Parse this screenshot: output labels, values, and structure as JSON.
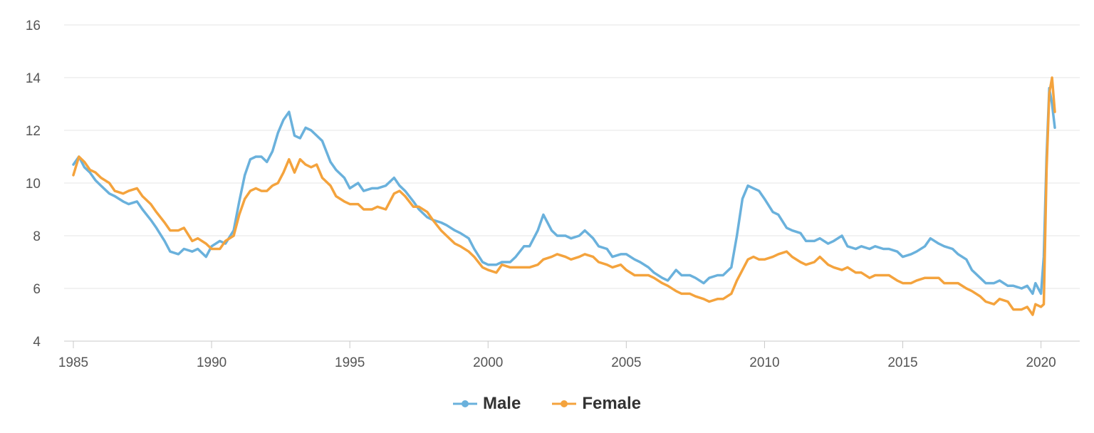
{
  "chart_data": {
    "type": "line",
    "title": "",
    "xlabel": "",
    "ylabel": "",
    "xlim": [
      1985,
      2020.5
    ],
    "ylim": [
      4,
      16
    ],
    "x_ticks": [
      "1985",
      "1990",
      "1995",
      "2000",
      "2005",
      "2010",
      "2015",
      "2020"
    ],
    "y_ticks": [
      "4",
      "6",
      "8",
      "10",
      "12",
      "14",
      "16"
    ],
    "grid": "horizontal",
    "legend_position": "bottom-center",
    "series": [
      {
        "name": "Male",
        "color": "#6ab1dc",
        "points": [
          [
            1985.0,
            10.7
          ],
          [
            1985.2,
            11.0
          ],
          [
            1985.4,
            10.6
          ],
          [
            1985.6,
            10.4
          ],
          [
            1985.8,
            10.1
          ],
          [
            1986.0,
            9.9
          ],
          [
            1986.3,
            9.6
          ],
          [
            1986.5,
            9.5
          ],
          [
            1986.8,
            9.3
          ],
          [
            1987.0,
            9.2
          ],
          [
            1987.3,
            9.3
          ],
          [
            1987.5,
            9.0
          ],
          [
            1987.8,
            8.6
          ],
          [
            1988.0,
            8.3
          ],
          [
            1988.3,
            7.8
          ],
          [
            1988.5,
            7.4
          ],
          [
            1988.8,
            7.3
          ],
          [
            1989.0,
            7.5
          ],
          [
            1989.3,
            7.4
          ],
          [
            1989.5,
            7.5
          ],
          [
            1989.8,
            7.2
          ],
          [
            1990.0,
            7.6
          ],
          [
            1990.3,
            7.8
          ],
          [
            1990.5,
            7.7
          ],
          [
            1990.8,
            8.2
          ],
          [
            1991.0,
            9.3
          ],
          [
            1991.2,
            10.3
          ],
          [
            1991.4,
            10.9
          ],
          [
            1991.6,
            11.0
          ],
          [
            1991.8,
            11.0
          ],
          [
            1992.0,
            10.8
          ],
          [
            1992.2,
            11.2
          ],
          [
            1992.4,
            11.9
          ],
          [
            1992.6,
            12.4
          ],
          [
            1992.8,
            12.7
          ],
          [
            1993.0,
            11.8
          ],
          [
            1993.2,
            11.7
          ],
          [
            1993.4,
            12.1
          ],
          [
            1993.6,
            12.0
          ],
          [
            1993.8,
            11.8
          ],
          [
            1994.0,
            11.6
          ],
          [
            1994.3,
            10.8
          ],
          [
            1994.5,
            10.5
          ],
          [
            1994.8,
            10.2
          ],
          [
            1995.0,
            9.8
          ],
          [
            1995.3,
            10.0
          ],
          [
            1995.5,
            9.7
          ],
          [
            1995.8,
            9.8
          ],
          [
            1996.0,
            9.8
          ],
          [
            1996.3,
            9.9
          ],
          [
            1996.6,
            10.2
          ],
          [
            1996.8,
            9.9
          ],
          [
            1997.0,
            9.7
          ],
          [
            1997.3,
            9.3
          ],
          [
            1997.5,
            9.0
          ],
          [
            1997.8,
            8.7
          ],
          [
            1998.0,
            8.6
          ],
          [
            1998.3,
            8.5
          ],
          [
            1998.5,
            8.4
          ],
          [
            1998.8,
            8.2
          ],
          [
            1999.0,
            8.1
          ],
          [
            1999.3,
            7.9
          ],
          [
            1999.5,
            7.5
          ],
          [
            1999.8,
            7.0
          ],
          [
            2000.0,
            6.9
          ],
          [
            2000.3,
            6.9
          ],
          [
            2000.5,
            7.0
          ],
          [
            2000.8,
            7.0
          ],
          [
            2001.0,
            7.2
          ],
          [
            2001.3,
            7.6
          ],
          [
            2001.5,
            7.6
          ],
          [
            2001.8,
            8.2
          ],
          [
            2002.0,
            8.8
          ],
          [
            2002.3,
            8.2
          ],
          [
            2002.5,
            8.0
          ],
          [
            2002.8,
            8.0
          ],
          [
            2003.0,
            7.9
          ],
          [
            2003.3,
            8.0
          ],
          [
            2003.5,
            8.2
          ],
          [
            2003.8,
            7.9
          ],
          [
            2004.0,
            7.6
          ],
          [
            2004.3,
            7.5
          ],
          [
            2004.5,
            7.2
          ],
          [
            2004.8,
            7.3
          ],
          [
            2005.0,
            7.3
          ],
          [
            2005.3,
            7.1
          ],
          [
            2005.5,
            7.0
          ],
          [
            2005.8,
            6.8
          ],
          [
            2006.0,
            6.6
          ],
          [
            2006.3,
            6.4
          ],
          [
            2006.5,
            6.3
          ],
          [
            2006.8,
            6.7
          ],
          [
            2007.0,
            6.5
          ],
          [
            2007.3,
            6.5
          ],
          [
            2007.5,
            6.4
          ],
          [
            2007.8,
            6.2
          ],
          [
            2008.0,
            6.4
          ],
          [
            2008.3,
            6.5
          ],
          [
            2008.5,
            6.5
          ],
          [
            2008.8,
            6.8
          ],
          [
            2009.0,
            8.0
          ],
          [
            2009.2,
            9.4
          ],
          [
            2009.4,
            9.9
          ],
          [
            2009.6,
            9.8
          ],
          [
            2009.8,
            9.7
          ],
          [
            2010.0,
            9.4
          ],
          [
            2010.3,
            8.9
          ],
          [
            2010.5,
            8.8
          ],
          [
            2010.8,
            8.3
          ],
          [
            2011.0,
            8.2
          ],
          [
            2011.3,
            8.1
          ],
          [
            2011.5,
            7.8
          ],
          [
            2011.8,
            7.8
          ],
          [
            2012.0,
            7.9
          ],
          [
            2012.3,
            7.7
          ],
          [
            2012.5,
            7.8
          ],
          [
            2012.8,
            8.0
          ],
          [
            2013.0,
            7.6
          ],
          [
            2013.3,
            7.5
          ],
          [
            2013.5,
            7.6
          ],
          [
            2013.8,
            7.5
          ],
          [
            2014.0,
            7.6
          ],
          [
            2014.3,
            7.5
          ],
          [
            2014.5,
            7.5
          ],
          [
            2014.8,
            7.4
          ],
          [
            2015.0,
            7.2
          ],
          [
            2015.3,
            7.3
          ],
          [
            2015.5,
            7.4
          ],
          [
            2015.8,
            7.6
          ],
          [
            2016.0,
            7.9
          ],
          [
            2016.3,
            7.7
          ],
          [
            2016.5,
            7.6
          ],
          [
            2016.8,
            7.5
          ],
          [
            2017.0,
            7.3
          ],
          [
            2017.3,
            7.1
          ],
          [
            2017.5,
            6.7
          ],
          [
            2017.8,
            6.4
          ],
          [
            2018.0,
            6.2
          ],
          [
            2018.3,
            6.2
          ],
          [
            2018.5,
            6.3
          ],
          [
            2018.8,
            6.1
          ],
          [
            2019.0,
            6.1
          ],
          [
            2019.3,
            6.0
          ],
          [
            2019.5,
            6.1
          ],
          [
            2019.7,
            5.8
          ],
          [
            2019.8,
            6.2
          ],
          [
            2020.0,
            5.8
          ],
          [
            2020.1,
            7.2
          ],
          [
            2020.2,
            11.0
          ],
          [
            2020.3,
            13.6
          ],
          [
            2020.4,
            13.0
          ],
          [
            2020.5,
            12.1
          ]
        ]
      },
      {
        "name": "Female",
        "color": "#f4a33d",
        "points": [
          [
            1985.0,
            10.3
          ],
          [
            1985.2,
            11.0
          ],
          [
            1985.4,
            10.8
          ],
          [
            1985.6,
            10.5
          ],
          [
            1985.8,
            10.4
          ],
          [
            1986.0,
            10.2
          ],
          [
            1986.3,
            10.0
          ],
          [
            1986.5,
            9.7
          ],
          [
            1986.8,
            9.6
          ],
          [
            1987.0,
            9.7
          ],
          [
            1987.3,
            9.8
          ],
          [
            1987.5,
            9.5
          ],
          [
            1987.8,
            9.2
          ],
          [
            1988.0,
            8.9
          ],
          [
            1988.3,
            8.5
          ],
          [
            1988.5,
            8.2
          ],
          [
            1988.8,
            8.2
          ],
          [
            1989.0,
            8.3
          ],
          [
            1989.3,
            7.8
          ],
          [
            1989.5,
            7.9
          ],
          [
            1989.8,
            7.7
          ],
          [
            1990.0,
            7.5
          ],
          [
            1990.3,
            7.5
          ],
          [
            1990.5,
            7.8
          ],
          [
            1990.8,
            8.0
          ],
          [
            1991.0,
            8.8
          ],
          [
            1991.2,
            9.4
          ],
          [
            1991.4,
            9.7
          ],
          [
            1991.6,
            9.8
          ],
          [
            1991.8,
            9.7
          ],
          [
            1992.0,
            9.7
          ],
          [
            1992.2,
            9.9
          ],
          [
            1992.4,
            10.0
          ],
          [
            1992.6,
            10.4
          ],
          [
            1992.8,
            10.9
          ],
          [
            1993.0,
            10.4
          ],
          [
            1993.2,
            10.9
          ],
          [
            1993.4,
            10.7
          ],
          [
            1993.6,
            10.6
          ],
          [
            1993.8,
            10.7
          ],
          [
            1994.0,
            10.2
          ],
          [
            1994.3,
            9.9
          ],
          [
            1994.5,
            9.5
          ],
          [
            1994.8,
            9.3
          ],
          [
            1995.0,
            9.2
          ],
          [
            1995.3,
            9.2
          ],
          [
            1995.5,
            9.0
          ],
          [
            1995.8,
            9.0
          ],
          [
            1996.0,
            9.1
          ],
          [
            1996.3,
            9.0
          ],
          [
            1996.6,
            9.6
          ],
          [
            1996.8,
            9.7
          ],
          [
            1997.0,
            9.5
          ],
          [
            1997.3,
            9.1
          ],
          [
            1997.5,
            9.1
          ],
          [
            1997.8,
            8.9
          ],
          [
            1998.0,
            8.6
          ],
          [
            1998.3,
            8.2
          ],
          [
            1998.5,
            8.0
          ],
          [
            1998.8,
            7.7
          ],
          [
            1999.0,
            7.6
          ],
          [
            1999.3,
            7.4
          ],
          [
            1999.5,
            7.2
          ],
          [
            1999.8,
            6.8
          ],
          [
            2000.0,
            6.7
          ],
          [
            2000.3,
            6.6
          ],
          [
            2000.5,
            6.9
          ],
          [
            2000.8,
            6.8
          ],
          [
            2001.0,
            6.8
          ],
          [
            2001.3,
            6.8
          ],
          [
            2001.5,
            6.8
          ],
          [
            2001.8,
            6.9
          ],
          [
            2002.0,
            7.1
          ],
          [
            2002.3,
            7.2
          ],
          [
            2002.5,
            7.3
          ],
          [
            2002.8,
            7.2
          ],
          [
            2003.0,
            7.1
          ],
          [
            2003.3,
            7.2
          ],
          [
            2003.5,
            7.3
          ],
          [
            2003.8,
            7.2
          ],
          [
            2004.0,
            7.0
          ],
          [
            2004.3,
            6.9
          ],
          [
            2004.5,
            6.8
          ],
          [
            2004.8,
            6.9
          ],
          [
            2005.0,
            6.7
          ],
          [
            2005.3,
            6.5
          ],
          [
            2005.5,
            6.5
          ],
          [
            2005.8,
            6.5
          ],
          [
            2006.0,
            6.4
          ],
          [
            2006.3,
            6.2
          ],
          [
            2006.5,
            6.1
          ],
          [
            2006.8,
            5.9
          ],
          [
            2007.0,
            5.8
          ],
          [
            2007.3,
            5.8
          ],
          [
            2007.5,
            5.7
          ],
          [
            2007.8,
            5.6
          ],
          [
            2008.0,
            5.5
          ],
          [
            2008.3,
            5.6
          ],
          [
            2008.5,
            5.6
          ],
          [
            2008.8,
            5.8
          ],
          [
            2009.0,
            6.3
          ],
          [
            2009.2,
            6.7
          ],
          [
            2009.4,
            7.1
          ],
          [
            2009.6,
            7.2
          ],
          [
            2009.8,
            7.1
          ],
          [
            2010.0,
            7.1
          ],
          [
            2010.3,
            7.2
          ],
          [
            2010.5,
            7.3
          ],
          [
            2010.8,
            7.4
          ],
          [
            2011.0,
            7.2
          ],
          [
            2011.3,
            7.0
          ],
          [
            2011.5,
            6.9
          ],
          [
            2011.8,
            7.0
          ],
          [
            2012.0,
            7.2
          ],
          [
            2012.3,
            6.9
          ],
          [
            2012.5,
            6.8
          ],
          [
            2012.8,
            6.7
          ],
          [
            2013.0,
            6.8
          ],
          [
            2013.3,
            6.6
          ],
          [
            2013.5,
            6.6
          ],
          [
            2013.8,
            6.4
          ],
          [
            2014.0,
            6.5
          ],
          [
            2014.3,
            6.5
          ],
          [
            2014.5,
            6.5
          ],
          [
            2014.8,
            6.3
          ],
          [
            2015.0,
            6.2
          ],
          [
            2015.3,
            6.2
          ],
          [
            2015.5,
            6.3
          ],
          [
            2015.8,
            6.4
          ],
          [
            2016.0,
            6.4
          ],
          [
            2016.3,
            6.4
          ],
          [
            2016.5,
            6.2
          ],
          [
            2016.8,
            6.2
          ],
          [
            2017.0,
            6.2
          ],
          [
            2017.3,
            6.0
          ],
          [
            2017.5,
            5.9
          ],
          [
            2017.8,
            5.7
          ],
          [
            2018.0,
            5.5
          ],
          [
            2018.3,
            5.4
          ],
          [
            2018.5,
            5.6
          ],
          [
            2018.8,
            5.5
          ],
          [
            2019.0,
            5.2
          ],
          [
            2019.3,
            5.2
          ],
          [
            2019.5,
            5.3
          ],
          [
            2019.7,
            5.0
          ],
          [
            2019.8,
            5.4
          ],
          [
            2020.0,
            5.3
          ],
          [
            2020.1,
            5.4
          ],
          [
            2020.2,
            10.5
          ],
          [
            2020.3,
            13.4
          ],
          [
            2020.4,
            14.0
          ],
          [
            2020.5,
            12.7
          ]
        ]
      }
    ]
  }
}
